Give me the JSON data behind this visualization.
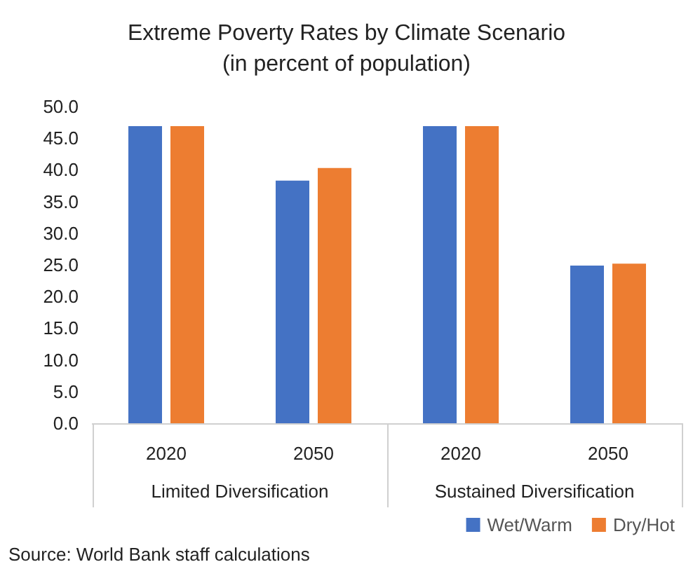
{
  "chart_data": {
    "type": "bar",
    "title": "Extreme Poverty Rates by Climate Scenario\n(in percent of population)",
    "categories": [
      "2020",
      "2050",
      "2020",
      "2050"
    ],
    "series": [
      {
        "name": "Wet/Warm",
        "color": "#4472c4",
        "values": [
          46.9,
          38.3,
          46.9,
          24.9
        ]
      },
      {
        "name": "Dry/Hot",
        "color": "#ed7d31",
        "values": [
          46.9,
          40.3,
          46.9,
          25.2
        ]
      }
    ],
    "ylim": [
      0,
      50
    ],
    "yticks": [
      {
        "value": 0,
        "label": "0.0"
      },
      {
        "value": 5,
        "label": "5.0"
      },
      {
        "value": 10,
        "label": "10.0"
      },
      {
        "value": 15,
        "label": "15.0"
      },
      {
        "value": 20,
        "label": "20.0"
      },
      {
        "value": 25,
        "label": "25.0"
      },
      {
        "value": 30,
        "label": "30.0"
      },
      {
        "value": 35,
        "label": "35.0"
      },
      {
        "value": 40,
        "label": "40.0"
      },
      {
        "value": 45,
        "label": "45.0"
      },
      {
        "value": 50,
        "label": "50.0"
      }
    ],
    "annotations": [
      "Limited Diversification",
      "Sustained Diversification",
      "Source: World Bank staff calculations"
    ],
    "grid": false,
    "legend": "bottom right"
  }
}
